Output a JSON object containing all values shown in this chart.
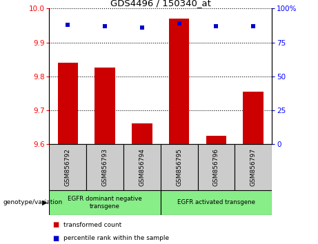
{
  "title": "GDS4496 / 150340_at",
  "samples": [
    "GSM856792",
    "GSM856793",
    "GSM856794",
    "GSM856795",
    "GSM856796",
    "GSM856797"
  ],
  "transformed_counts": [
    9.84,
    9.825,
    9.66,
    9.97,
    9.625,
    9.755
  ],
  "percentile_ranks": [
    88,
    87,
    86,
    89,
    87,
    87
  ],
  "ylim_left": [
    9.6,
    10.0
  ],
  "ylim_right": [
    0,
    100
  ],
  "yticks_left": [
    9.6,
    9.7,
    9.8,
    9.9,
    10.0
  ],
  "yticks_right": [
    0,
    25,
    50,
    75,
    100
  ],
  "bar_color": "#cc0000",
  "dot_color": "#0000cc",
  "group1_label": "EGFR dominant negative\ntransgene",
  "group2_label": "EGFR activated transgene",
  "group1_indices": [
    0,
    1,
    2
  ],
  "group2_indices": [
    3,
    4,
    5
  ],
  "legend_bar_label": "transformed count",
  "legend_dot_label": "percentile rank within the sample",
  "xlabel_left": "genotype/variation",
  "group_bg_color": "#88ee88",
  "sample_bg_color": "#cccccc",
  "fig_width": 4.61,
  "fig_height": 3.54,
  "dpi": 100
}
